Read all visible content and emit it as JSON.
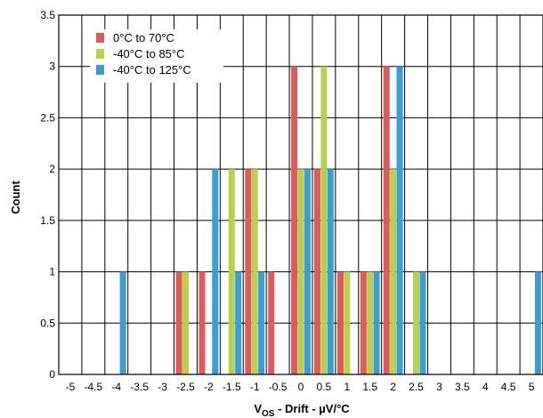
{
  "chart_data": {
    "type": "bar",
    "title": "",
    "xlabel": "V_OS - Drift - µV/°C",
    "xlabel_main": "V",
    "xlabel_sub": "OS",
    "xlabel_rest": " - Drift - µV/°C",
    "ylabel": "Count",
    "xlim": [
      -5.25,
      5.25
    ],
    "ylim": [
      0,
      3.5
    ],
    "x_ticks": [
      -5,
      -4.5,
      -4,
      -3.5,
      -3,
      -2.5,
      -2,
      -1.5,
      -1,
      -0.5,
      0,
      0.5,
      1,
      1.5,
      2,
      2.5,
      3,
      3.5,
      4,
      4.5,
      5
    ],
    "x_tick_labels": [
      "-5",
      "-4.5",
      "-4",
      "-3.5",
      "-3",
      "-2.5",
      "-2",
      "-1.5",
      "-1",
      "-0.5",
      "0",
      "0.5",
      "1",
      "1.5",
      "2",
      "2.5",
      "3",
      "3.5",
      "4",
      "4.5",
      "5"
    ],
    "y_ticks": [
      0,
      0.5,
      1,
      1.5,
      2,
      2.5,
      3,
      3.5
    ],
    "y_tick_labels": [
      "0",
      "0.5",
      "1",
      "1.5",
      "2",
      "2.5",
      "3",
      "3.5"
    ],
    "grid": true,
    "legend_position": "top-left",
    "categories": [
      -5,
      -4.5,
      -4,
      -3.5,
      -3,
      -2.5,
      -2,
      -1.5,
      -1,
      -0.5,
      0,
      0.5,
      1,
      1.5,
      2,
      2.5,
      3,
      3.5,
      4,
      4.5,
      5
    ],
    "series": [
      {
        "name": "0°C to 70°C",
        "color": "#e05a5a",
        "values": [
          0,
          0,
          0,
          0,
          0,
          1,
          1,
          0,
          2,
          1,
          3,
          2,
          1,
          1,
          3,
          0,
          0,
          0,
          0,
          0,
          0
        ]
      },
      {
        "name": "-40°C to 85°C",
        "color": "#b9cf4e",
        "values": [
          0,
          0,
          0,
          0,
          0,
          1,
          0,
          2,
          2,
          0,
          2,
          3,
          1,
          1,
          2,
          1,
          0,
          0,
          0,
          0,
          0
        ]
      },
      {
        "name": "-40°C to 125°C",
        "color": "#3a9ed6",
        "values": [
          0,
          0,
          1,
          0,
          0,
          0,
          2,
          1,
          1,
          0,
          2,
          2,
          0,
          1,
          3,
          1,
          0,
          0,
          0,
          0,
          1
        ]
      }
    ]
  }
}
